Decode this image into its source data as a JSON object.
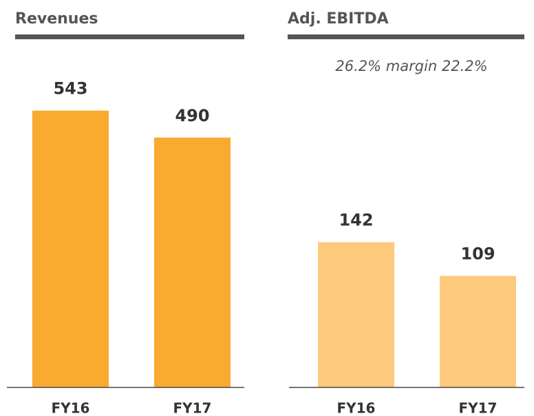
{
  "chart_data": [
    {
      "type": "bar",
      "title": "Revenues",
      "categories": [
        "FY16",
        "FY17"
      ],
      "values": [
        543,
        490
      ],
      "color": "#f9ab30",
      "ylim": [
        0,
        625
      ]
    },
    {
      "type": "bar",
      "title": "Adj. EBITDA",
      "annotation": "26.2% margin 22.2%",
      "categories": [
        "FY16",
        "FY17"
      ],
      "values": [
        142,
        109
      ],
      "color": "#fdc97c",
      "ylim": [
        0,
        312
      ]
    }
  ]
}
